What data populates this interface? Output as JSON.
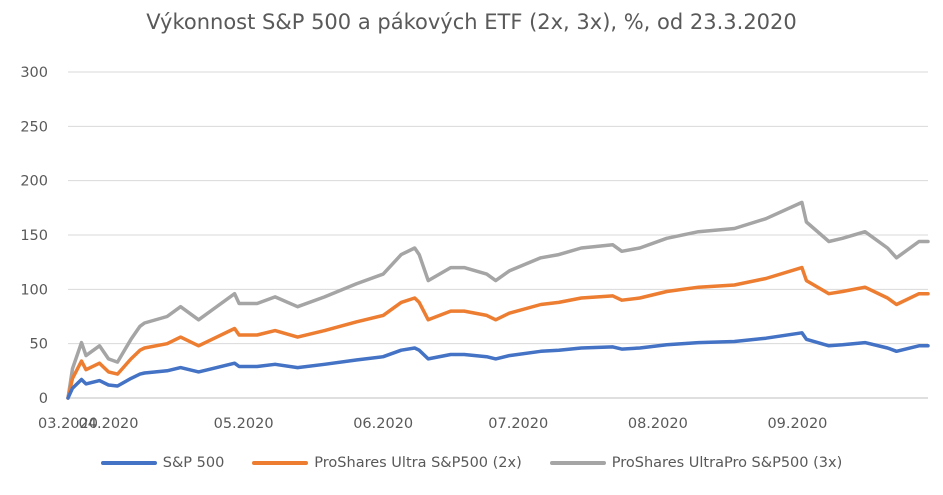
{
  "chart_data": {
    "type": "line",
    "title": "Výkonnost S&P 500 a pákových ETF (2x, 3x), %, od 23.3.2020",
    "xlabel": "",
    "ylabel": "",
    "ylim": [
      0,
      300
    ],
    "yticks": [
      0,
      50,
      100,
      150,
      200,
      250,
      300
    ],
    "xlim": [
      "2020-03-23",
      "2020-09-30"
    ],
    "xticks": [
      {
        "date": "2020-03-23",
        "label": "03.2020"
      },
      {
        "date": "2020-04-01",
        "label": "04.2020"
      },
      {
        "date": "2020-05-01",
        "label": "05.2020"
      },
      {
        "date": "2020-06-01",
        "label": "06.2020"
      },
      {
        "date": "2020-07-01",
        "label": "07.2020"
      },
      {
        "date": "2020-08-01",
        "label": "08.2020"
      },
      {
        "date": "2020-09-01",
        "label": "09.2020"
      }
    ],
    "grid": true,
    "legend_position": "bottom",
    "series": [
      {
        "name": "S&P 500",
        "color": "#4472C4",
        "points": [
          [
            "2020-03-23",
            0
          ],
          [
            "2020-03-24",
            9
          ],
          [
            "2020-03-26",
            17
          ],
          [
            "2020-03-27",
            13
          ],
          [
            "2020-03-30",
            16
          ],
          [
            "2020-04-01",
            12
          ],
          [
            "2020-04-03",
            11
          ],
          [
            "2020-04-06",
            18
          ],
          [
            "2020-04-08",
            22
          ],
          [
            "2020-04-09",
            23
          ],
          [
            "2020-04-14",
            25
          ],
          [
            "2020-04-17",
            28
          ],
          [
            "2020-04-21",
            24
          ],
          [
            "2020-04-24",
            27
          ],
          [
            "2020-04-29",
            32
          ],
          [
            "2020-04-30",
            29
          ],
          [
            "2020-05-04",
            29
          ],
          [
            "2020-05-08",
            31
          ],
          [
            "2020-05-13",
            28
          ],
          [
            "2020-05-19",
            31
          ],
          [
            "2020-05-26",
            35
          ],
          [
            "2020-06-01",
            38
          ],
          [
            "2020-06-05",
            44
          ],
          [
            "2020-06-08",
            46
          ],
          [
            "2020-06-09",
            44
          ],
          [
            "2020-06-11",
            36
          ],
          [
            "2020-06-16",
            40
          ],
          [
            "2020-06-19",
            40
          ],
          [
            "2020-06-24",
            38
          ],
          [
            "2020-06-26",
            36
          ],
          [
            "2020-06-29",
            39
          ],
          [
            "2020-07-06",
            43
          ],
          [
            "2020-07-10",
            44
          ],
          [
            "2020-07-15",
            46
          ],
          [
            "2020-07-22",
            47
          ],
          [
            "2020-07-24",
            45
          ],
          [
            "2020-07-28",
            46
          ],
          [
            "2020-08-03",
            49
          ],
          [
            "2020-08-10",
            51
          ],
          [
            "2020-08-18",
            52
          ],
          [
            "2020-08-25",
            55
          ],
          [
            "2020-09-02",
            60
          ],
          [
            "2020-09-03",
            54
          ],
          [
            "2020-09-08",
            48
          ],
          [
            "2020-09-11",
            49
          ],
          [
            "2020-09-16",
            51
          ],
          [
            "2020-09-21",
            46
          ],
          [
            "2020-09-23",
            43
          ],
          [
            "2020-09-28",
            48
          ],
          [
            "2020-09-30",
            48
          ]
        ]
      },
      {
        "name": "ProShares Ultra S&P500 (2x)",
        "color": "#ED7D31",
        "points": [
          [
            "2020-03-23",
            0
          ],
          [
            "2020-03-24",
            18
          ],
          [
            "2020-03-26",
            34
          ],
          [
            "2020-03-27",
            26
          ],
          [
            "2020-03-30",
            32
          ],
          [
            "2020-04-01",
            24
          ],
          [
            "2020-04-03",
            22
          ],
          [
            "2020-04-06",
            36
          ],
          [
            "2020-04-08",
            44
          ],
          [
            "2020-04-09",
            46
          ],
          [
            "2020-04-14",
            50
          ],
          [
            "2020-04-17",
            56
          ],
          [
            "2020-04-21",
            48
          ],
          [
            "2020-04-24",
            54
          ],
          [
            "2020-04-29",
            64
          ],
          [
            "2020-04-30",
            58
          ],
          [
            "2020-05-04",
            58
          ],
          [
            "2020-05-08",
            62
          ],
          [
            "2020-05-13",
            56
          ],
          [
            "2020-05-19",
            62
          ],
          [
            "2020-05-26",
            70
          ],
          [
            "2020-06-01",
            76
          ],
          [
            "2020-06-05",
            88
          ],
          [
            "2020-06-08",
            92
          ],
          [
            "2020-06-09",
            88
          ],
          [
            "2020-06-11",
            72
          ],
          [
            "2020-06-16",
            80
          ],
          [
            "2020-06-19",
            80
          ],
          [
            "2020-06-24",
            76
          ],
          [
            "2020-06-26",
            72
          ],
          [
            "2020-06-29",
            78
          ],
          [
            "2020-07-06",
            86
          ],
          [
            "2020-07-10",
            88
          ],
          [
            "2020-07-15",
            92
          ],
          [
            "2020-07-22",
            94
          ],
          [
            "2020-07-24",
            90
          ],
          [
            "2020-07-28",
            92
          ],
          [
            "2020-08-03",
            98
          ],
          [
            "2020-08-10",
            102
          ],
          [
            "2020-08-18",
            104
          ],
          [
            "2020-08-25",
            110
          ],
          [
            "2020-09-02",
            120
          ],
          [
            "2020-09-03",
            108
          ],
          [
            "2020-09-08",
            96
          ],
          [
            "2020-09-11",
            98
          ],
          [
            "2020-09-16",
            102
          ],
          [
            "2020-09-21",
            92
          ],
          [
            "2020-09-23",
            86
          ],
          [
            "2020-09-28",
            96
          ],
          [
            "2020-09-30",
            96
          ]
        ]
      },
      {
        "name": "ProShares UltraPro S&P500 (3x)",
        "color": "#A5A5A5",
        "points": [
          [
            "2020-03-23",
            0
          ],
          [
            "2020-03-24",
            27
          ],
          [
            "2020-03-26",
            51
          ],
          [
            "2020-03-27",
            39
          ],
          [
            "2020-03-30",
            48
          ],
          [
            "2020-04-01",
            36
          ],
          [
            "2020-04-03",
            33
          ],
          [
            "2020-04-06",
            54
          ],
          [
            "2020-04-08",
            66
          ],
          [
            "2020-04-09",
            69
          ],
          [
            "2020-04-14",
            75
          ],
          [
            "2020-04-17",
            84
          ],
          [
            "2020-04-21",
            72
          ],
          [
            "2020-04-24",
            81
          ],
          [
            "2020-04-29",
            96
          ],
          [
            "2020-04-30",
            87
          ],
          [
            "2020-05-04",
            87
          ],
          [
            "2020-05-08",
            93
          ],
          [
            "2020-05-13",
            84
          ],
          [
            "2020-05-19",
            93
          ],
          [
            "2020-05-26",
            105
          ],
          [
            "2020-06-01",
            114
          ],
          [
            "2020-06-05",
            132
          ],
          [
            "2020-06-08",
            138
          ],
          [
            "2020-06-09",
            132
          ],
          [
            "2020-06-11",
            108
          ],
          [
            "2020-06-16",
            120
          ],
          [
            "2020-06-19",
            120
          ],
          [
            "2020-06-24",
            114
          ],
          [
            "2020-06-26",
            108
          ],
          [
            "2020-06-29",
            117
          ],
          [
            "2020-07-06",
            129
          ],
          [
            "2020-07-10",
            132
          ],
          [
            "2020-07-15",
            138
          ],
          [
            "2020-07-22",
            141
          ],
          [
            "2020-07-24",
            135
          ],
          [
            "2020-07-28",
            138
          ],
          [
            "2020-08-03",
            147
          ],
          [
            "2020-08-10",
            153
          ],
          [
            "2020-08-18",
            156
          ],
          [
            "2020-08-25",
            165
          ],
          [
            "2020-09-02",
            180
          ],
          [
            "2020-09-03",
            162
          ],
          [
            "2020-09-08",
            144
          ],
          [
            "2020-09-11",
            147
          ],
          [
            "2020-09-16",
            153
          ],
          [
            "2020-09-21",
            138
          ],
          [
            "2020-09-23",
            129
          ],
          [
            "2020-09-28",
            144
          ],
          [
            "2020-09-30",
            144
          ]
        ]
      }
    ]
  }
}
